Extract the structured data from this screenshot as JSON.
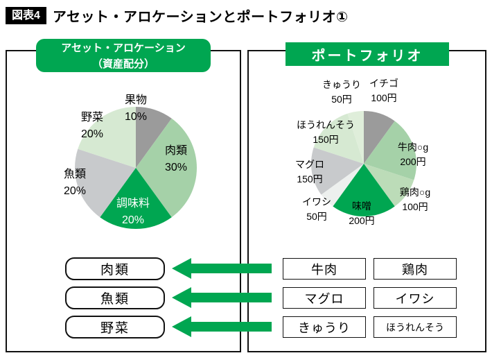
{
  "colors": {
    "accent": "#00a651",
    "border": "#111111"
  },
  "title": {
    "badge": "図表4",
    "text": "アセット・アロケーションとポートフォリオ①"
  },
  "left_panel": {
    "header_line1": "アセット・アロケーション",
    "header_line2": "（資産配分）",
    "categories": [
      "肉類",
      "魚類",
      "野菜"
    ]
  },
  "right_panel": {
    "header": "ポートフォリオ",
    "rows": [
      [
        "牛肉",
        "鶏肉"
      ],
      [
        "マグロ",
        "イワシ"
      ],
      [
        "きゅうり",
        "ほうれんそう"
      ]
    ]
  },
  "chart_data": [
    {
      "type": "pie",
      "title": "アセット・アロケーション（資産配分）",
      "unit": "%",
      "start_angle_deg": 0,
      "direction": "clockwise",
      "slices": [
        {
          "label": "果物",
          "value": 10,
          "color": "#9b9b9b",
          "text_color": "#000000"
        },
        {
          "label": "肉類",
          "value": 30,
          "color": "#a5d1a8",
          "text_color": "#000000"
        },
        {
          "label": "調味料",
          "value": 20,
          "color": "#00a651",
          "text_color": "#ffffff"
        },
        {
          "label": "魚類",
          "value": 20,
          "color": "#c8cacc",
          "text_color": "#000000"
        },
        {
          "label": "野菜",
          "value": 20,
          "color": "#d6e9d2",
          "text_color": "#000000"
        }
      ]
    },
    {
      "type": "pie",
      "title": "ポートフォリオ",
      "unit": "円",
      "start_angle_deg": 0,
      "direction": "clockwise",
      "slices": [
        {
          "label": "イチゴ",
          "value": 100,
          "color": "#9b9b9b",
          "text_color": "#000000"
        },
        {
          "label": "牛肉○g",
          "value": 200,
          "color": "#a5d1a8",
          "text_color": "#000000"
        },
        {
          "label": "鶏肉○g",
          "value": 100,
          "color": "#bcdcb8",
          "text_color": "#000000"
        },
        {
          "label": "味噌",
          "value": 200,
          "color": "#00a651",
          "text_color": "#000000"
        },
        {
          "label": "イワシ",
          "value": 50,
          "color": "#edf0ee",
          "text_color": "#000000"
        },
        {
          "label": "マグロ",
          "value": 150,
          "color": "#c8cacc",
          "text_color": "#000000"
        },
        {
          "label": "ほうれんそう",
          "value": 150,
          "color": "#d6e9d2",
          "text_color": "#000000"
        },
        {
          "label": "きゅうり",
          "value": 50,
          "color": "#dfeeda",
          "text_color": "#000000"
        }
      ]
    }
  ]
}
